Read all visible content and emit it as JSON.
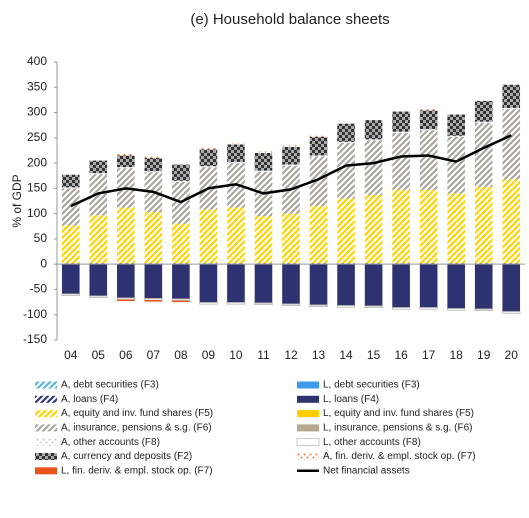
{
  "chart_data": {
    "type": "bar",
    "title": "(e) Household balance sheets",
    "y_label": "% of GDP",
    "categories": [
      "04",
      "05",
      "06",
      "07",
      "08",
      "09",
      "10",
      "11",
      "12",
      "13",
      "14",
      "15",
      "16",
      "17",
      "18",
      "19",
      "20"
    ],
    "ylim": [
      -150,
      400
    ],
    "yticks": [
      -150,
      -100,
      -50,
      0,
      50,
      100,
      150,
      200,
      250,
      300,
      350,
      400
    ],
    "series": [
      {
        "name": "A, debt securities (F3)",
        "color": "#5bb5e5",
        "pattern": "diagonal",
        "values": [
          1,
          1,
          1,
          1,
          1,
          1,
          1,
          1,
          1,
          1,
          1,
          1,
          1,
          1,
          1,
          1,
          1
        ]
      },
      {
        "name": "L, debt securities (F3)",
        "color": "#3d9be9",
        "pattern": "solid",
        "values": [
          0,
          0,
          0,
          0,
          0,
          0,
          0,
          0,
          0,
          0,
          0,
          0,
          0,
          0,
          0,
          0,
          0
        ]
      },
      {
        "name": "A, loans (F4)",
        "color": "#2e3a78",
        "pattern": "diagonal",
        "values": [
          1,
          1,
          1,
          1,
          1,
          1,
          1,
          1,
          1,
          1,
          1,
          1,
          1,
          1,
          1,
          1,
          1
        ]
      },
      {
        "name": "L, loans (F4)",
        "color": "#2e3270",
        "pattern": "solid",
        "values": [
          -58,
          -62,
          -66,
          -67,
          -68,
          -75,
          -75,
          -76,
          -78,
          -80,
          -81,
          -82,
          -85,
          -85,
          -87,
          -88,
          -93
        ]
      },
      {
        "name": "A, equity and inv. fund shares (F5)",
        "color": "#ffd400",
        "pattern": "diagonal",
        "values": [
          75,
          95,
          110,
          101,
          78,
          106,
          110,
          93,
          98,
          113,
          128,
          135,
          145,
          145,
          138,
          151,
          166
        ]
      },
      {
        "name": "L, equity and inv. fund shares (F5)",
        "color": "#ffcc00",
        "pattern": "solid",
        "values": [
          0,
          0,
          0,
          0,
          0,
          0,
          0,
          0,
          0,
          0,
          0,
          0,
          0,
          0,
          0,
          0,
          0
        ]
      },
      {
        "name": "A, insurance, pensions & s.g. (F6)",
        "color": "#aaa69e",
        "pattern": "diagonal",
        "values": [
          73,
          81,
          78,
          79,
          83,
          84,
          88,
          88,
          95,
          98,
          110,
          108,
          113,
          118,
          112,
          127,
          139
        ]
      },
      {
        "name": "L, insurance, pensions & s.g. (F6)",
        "color": "#b5a890",
        "pattern": "solid",
        "values": [
          -1,
          -1,
          -1,
          -1,
          -1,
          -1,
          -1,
          -1,
          -1,
          -1,
          -1,
          -1,
          -1,
          -1,
          -1,
          -1,
          -1
        ]
      },
      {
        "name": "A, other accounts (F8)",
        "color": "#c8c8c8",
        "pattern": "dots",
        "values": [
          2,
          2,
          2,
          2,
          2,
          2,
          2,
          2,
          2,
          2,
          2,
          2,
          2,
          2,
          2,
          2,
          2
        ]
      },
      {
        "name": "L, other accounts (F8)",
        "color": "#ffffff",
        "pattern": "outline",
        "values": [
          -3,
          -3,
          -3,
          -3,
          -3,
          -3,
          -3,
          -3,
          -3,
          -3,
          -3,
          -3,
          -3,
          -3,
          -3,
          -3,
          -3
        ]
      },
      {
        "name": "A, currency and deposits (F2)",
        "color": "#333333",
        "pattern": "check",
        "values": [
          25,
          25,
          23,
          26,
          32,
          33,
          35,
          35,
          35,
          37,
          36,
          38,
          40,
          37,
          42,
          41,
          46
        ]
      },
      {
        "name": "A, fin. deriv. & empl. stock op. (F7)",
        "color": "#ee7a4a",
        "pattern": "dots",
        "values": [
          0,
          0,
          3,
          3,
          0,
          3,
          3,
          3,
          3,
          3,
          0,
          0,
          0,
          3,
          0,
          0,
          0
        ]
      },
      {
        "name": "L, fin. deriv. & empl. stock op. (F7)",
        "color": "#e8541c",
        "pattern": "solid",
        "values": [
          0,
          0,
          -3,
          -3,
          -3,
          0,
          0,
          0,
          0,
          0,
          0,
          0,
          0,
          0,
          0,
          0,
          0
        ]
      },
      {
        "name": "Net financial assets",
        "color": "#000000",
        "type": "line",
        "values": [
          115,
          140,
          150,
          143,
          123,
          150,
          158,
          140,
          148,
          168,
          195,
          200,
          213,
          215,
          203,
          230,
          255
        ]
      }
    ]
  }
}
